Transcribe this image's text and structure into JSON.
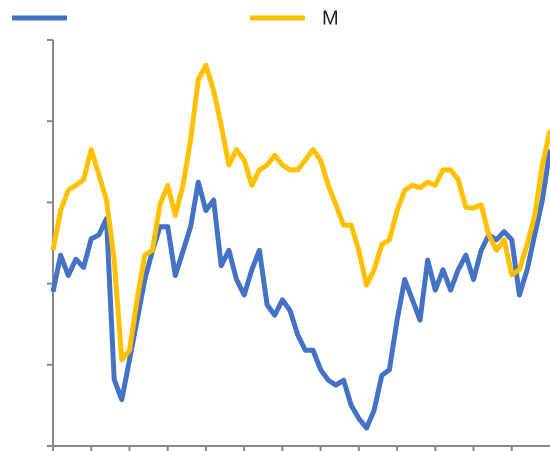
{
  "chart_data": {
    "type": "line",
    "x": [
      0,
      2,
      4,
      6,
      8,
      10,
      12,
      14,
      16,
      18,
      20,
      22,
      24,
      26,
      28,
      30,
      32,
      34,
      36,
      38,
      40,
      42,
      44,
      46,
      48,
      50,
      52,
      54,
      56,
      58,
      60,
      62,
      64,
      66,
      68,
      70,
      72,
      74,
      76,
      78,
      80,
      82,
      84,
      86,
      88,
      90,
      92,
      94,
      96,
      98,
      100,
      102,
      104,
      106,
      108,
      110,
      112,
      114,
      116,
      118,
      120,
      122,
      124,
      126,
      128,
      130
    ],
    "series": [
      {
        "color": "#4472c4",
        "values": [
          1.9,
          2.35,
          2.1,
          2.3,
          2.2,
          2.55,
          2.6,
          2.8,
          0.82,
          0.57,
          1.06,
          1.55,
          2.05,
          2.4,
          2.7,
          2.7,
          2.1,
          2.4,
          2.7,
          3.25,
          2.9,
          3.03,
          2.22,
          2.41,
          2.05,
          1.86,
          2.17,
          2.41,
          1.74,
          1.61,
          1.8,
          1.67,
          1.37,
          1.18,
          1.18,
          0.94,
          0.81,
          0.75,
          0.81,
          0.5,
          0.34,
          0.22,
          0.44,
          0.87,
          0.94,
          1.55,
          2.05,
          1.8,
          1.55,
          2.29,
          1.92,
          2.17,
          1.92,
          2.17,
          2.35,
          2.05,
          2.41,
          2.6,
          2.54,
          2.64,
          2.54,
          1.86,
          2.17,
          2.6,
          3.03,
          3.65
        ]
      },
      {
        "name": "M",
        "color": "#ffc000",
        "values": [
          2.41,
          2.9,
          3.15,
          3.21,
          3.28,
          3.65,
          3.34,
          3.03,
          2.29,
          1.06,
          1.18,
          1.8,
          2.35,
          2.41,
          2.97,
          3.21,
          2.84,
          3.21,
          3.77,
          4.51,
          4.69,
          4.38,
          3.95,
          3.46,
          3.65,
          3.52,
          3.21,
          3.4,
          3.46,
          3.58,
          3.46,
          3.4,
          3.4,
          3.52,
          3.65,
          3.52,
          3.21,
          2.97,
          2.72,
          2.72,
          2.41,
          1.98,
          2.17,
          2.48,
          2.54,
          2.9,
          3.15,
          3.21,
          3.18,
          3.25,
          3.21,
          3.4,
          3.4,
          3.28,
          2.94,
          2.93,
          2.97,
          2.6,
          2.41,
          2.54,
          2.11,
          2.17,
          2.48,
          2.84,
          3.46,
          3.89
        ]
      }
    ],
    "xlim": [
      0,
      130
    ],
    "xticks": [
      0,
      10,
      20,
      30,
      40,
      50,
      60,
      70,
      80,
      90,
      100,
      110,
      120
    ],
    "ylim": [
      0,
      5
    ],
    "yticks": [
      0,
      1,
      2,
      3,
      4,
      5
    ],
    "grid": false
  }
}
